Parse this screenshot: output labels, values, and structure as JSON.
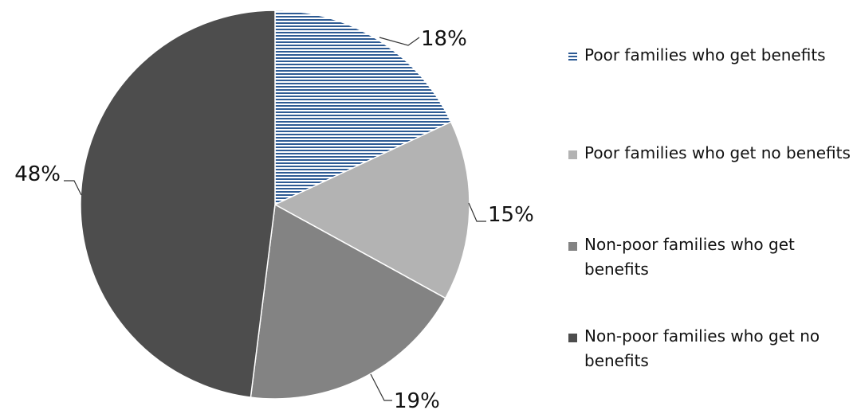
{
  "chart_data": {
    "type": "pie",
    "categories": [
      "Poor families who get benefits",
      "Poor families who get no benefits",
      "Non-poor families who get benefits",
      "Non-poor families who get no benefits"
    ],
    "values": [
      18,
      15,
      19,
      48
    ],
    "data_labels": [
      "18%",
      "15%",
      "19%",
      "48%"
    ],
    "colors": [
      "#2e5b94",
      "#b3b3b3",
      "#838383",
      "#4d4d4d"
    ],
    "first_slice_pattern": "horizontal-stripes",
    "legend_position": "right",
    "title": ""
  }
}
